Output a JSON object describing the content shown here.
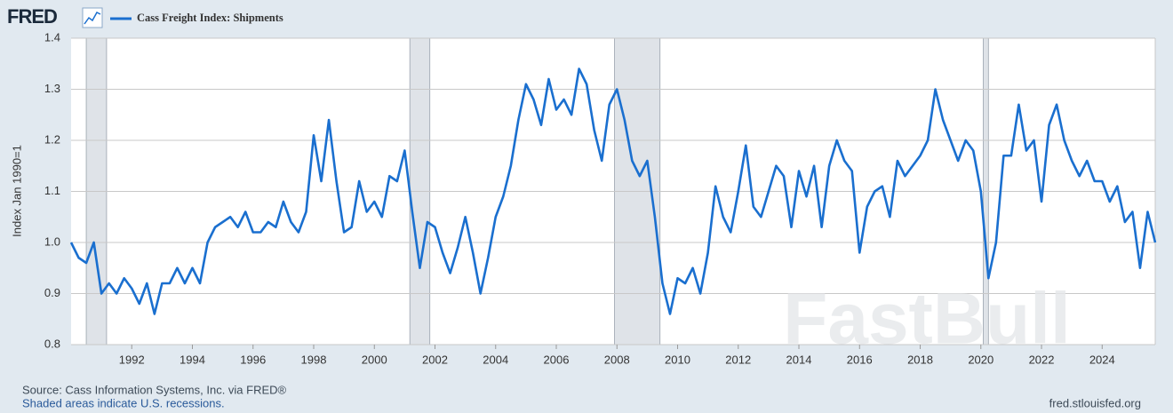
{
  "logo": "FRED",
  "chart_data": {
    "type": "line",
    "y_label": "Index Jan 1990=1",
    "x": [
      1990,
      1990.25,
      1990.5,
      1990.75,
      1991,
      1991.25,
      1991.5,
      1991.75,
      1992,
      1992.25,
      1992.5,
      1992.75,
      1993,
      1993.25,
      1993.5,
      1993.75,
      1994,
      1994.25,
      1994.5,
      1994.75,
      1995,
      1995.25,
      1995.5,
      1995.75,
      1996,
      1996.25,
      1996.5,
      1996.75,
      1997,
      1997.25,
      1997.5,
      1997.75,
      1998,
      1998.25,
      1998.5,
      1998.75,
      1999,
      1999.25,
      1999.5,
      1999.75,
      2000,
      2000.25,
      2000.5,
      2000.75,
      2001,
      2001.25,
      2001.5,
      2001.75,
      2002,
      2002.25,
      2002.5,
      2002.75,
      2003,
      2003.25,
      2003.5,
      2003.75,
      2004,
      2004.25,
      2004.5,
      2004.75,
      2005,
      2005.25,
      2005.5,
      2005.75,
      2006,
      2006.25,
      2006.5,
      2006.75,
      2007,
      2007.25,
      2007.5,
      2007.75,
      2008,
      2008.25,
      2008.5,
      2008.75,
      2009,
      2009.25,
      2009.5,
      2009.75,
      2010,
      2010.25,
      2010.5,
      2010.75,
      2011,
      2011.25,
      2011.5,
      2011.75,
      2012,
      2012.25,
      2012.5,
      2012.75,
      2013,
      2013.25,
      2013.5,
      2013.75,
      2014,
      2014.25,
      2014.5,
      2014.75,
      2015,
      2015.25,
      2015.5,
      2015.75,
      2016,
      2016.25,
      2016.5,
      2016.75,
      2017,
      2017.25,
      2017.5,
      2017.75,
      2018,
      2018.25,
      2018.5,
      2018.75,
      2019,
      2019.25,
      2019.5,
      2019.75,
      2020,
      2020.25,
      2020.5,
      2020.75,
      2021,
      2021.25,
      2021.5,
      2021.75,
      2022,
      2022.25,
      2022.5,
      2022.75,
      2023,
      2023.25,
      2023.5,
      2023.75,
      2024,
      2024.25,
      2024.5,
      2024.75,
      2025,
      2025.25,
      2025.5,
      2025.75
    ],
    "series": [
      {
        "name": "Cass Freight Index: Shipments",
        "color": "#1a6fcf",
        "values": [
          1.0,
          0.97,
          0.96,
          1.0,
          0.9,
          0.92,
          0.9,
          0.93,
          0.91,
          0.88,
          0.92,
          0.86,
          0.92,
          0.92,
          0.95,
          0.92,
          0.95,
          0.92,
          1.0,
          1.03,
          1.04,
          1.05,
          1.03,
          1.06,
          1.02,
          1.02,
          1.04,
          1.03,
          1.08,
          1.04,
          1.02,
          1.06,
          1.21,
          1.12,
          1.24,
          1.12,
          1.02,
          1.03,
          1.12,
          1.06,
          1.08,
          1.05,
          1.13,
          1.12,
          1.18,
          1.06,
          0.95,
          1.04,
          1.03,
          0.98,
          0.94,
          0.99,
          1.05,
          0.98,
          0.9,
          0.97,
          1.05,
          1.09,
          1.15,
          1.24,
          1.31,
          1.28,
          1.23,
          1.32,
          1.26,
          1.28,
          1.25,
          1.34,
          1.31,
          1.22,
          1.16,
          1.27,
          1.3,
          1.24,
          1.16,
          1.13,
          1.16,
          1.05,
          0.92,
          0.86,
          0.93,
          0.92,
          0.95,
          0.9,
          0.98,
          1.11,
          1.05,
          1.02,
          1.1,
          1.19,
          1.07,
          1.05,
          1.1,
          1.15,
          1.13,
          1.03,
          1.14,
          1.09,
          1.15,
          1.03,
          1.15,
          1.2,
          1.16,
          1.14,
          0.98,
          1.07,
          1.1,
          1.11,
          1.05,
          1.16,
          1.13,
          1.15,
          1.17,
          1.2,
          1.3,
          1.24,
          1.2,
          1.16,
          1.2,
          1.18,
          1.1,
          0.93,
          1.0,
          1.17,
          1.17,
          1.27,
          1.18,
          1.2,
          1.08,
          1.23,
          1.27,
          1.2,
          1.16,
          1.13,
          1.16,
          1.12,
          1.12,
          1.08,
          1.11,
          1.04,
          1.06,
          0.95,
          1.06,
          1.0
        ]
      }
    ],
    "xlim": [
      1990,
      2025.75
    ],
    "xticks": [
      1992,
      1994,
      1996,
      1998,
      2000,
      2002,
      2004,
      2006,
      2008,
      2010,
      2012,
      2014,
      2016,
      2018,
      2020,
      2022,
      2024
    ],
    "ylim": [
      0.8,
      1.4
    ],
    "yticks": [
      0.8,
      0.9,
      {
        "value": 1,
        "label": "1.0"
      },
      1.1,
      1.2,
      1.3,
      1.4
    ],
    "grid": true,
    "recessions": [
      [
        1990.5,
        1991.17
      ],
      [
        2001.17,
        2001.83
      ],
      [
        2007.92,
        2009.42
      ],
      [
        2020.08,
        2020.25
      ]
    ],
    "source": "Source: Cass Information Systems, Inc. via FRED®",
    "note": "Shaded areas indicate U.S. recessions.",
    "site": "fred.stlouisfed.org",
    "watermark": "FastBull"
  }
}
